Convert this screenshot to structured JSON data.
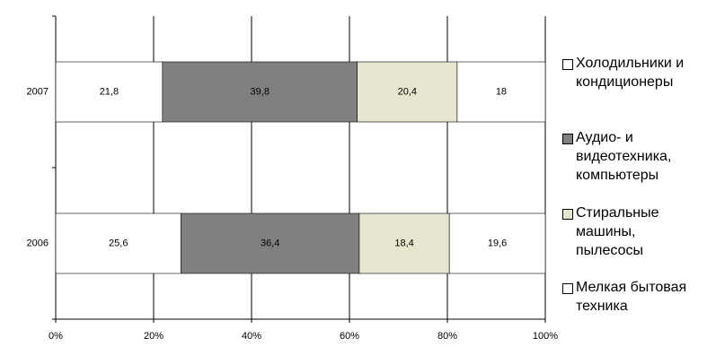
{
  "chart_data": {
    "type": "stacked-bar-horizontal",
    "categories": [
      "2007",
      "2006"
    ],
    "series": [
      {
        "name": "Холодильники и кондиционеры",
        "color": "#ffffff",
        "values": [
          21.8,
          25.6
        ],
        "value_labels": [
          "21,8",
          "25,6"
        ]
      },
      {
        "name": "Аудио- и видеотехника, компьютеры",
        "color": "#808080",
        "values": [
          39.8,
          36.4
        ],
        "value_labels": [
          "39,8",
          "36,4"
        ]
      },
      {
        "name": "Стиральные машины, пылесосы",
        "color": "#e6e6cf",
        "values": [
          20.4,
          18.4
        ],
        "value_labels": [
          "20,4",
          "18,4"
        ]
      },
      {
        "name": "Мелкая бытовая техника",
        "color": "#ffffff",
        "values": [
          18,
          19.6
        ],
        "value_labels": [
          "18",
          "19,6"
        ]
      }
    ],
    "xlim": [
      0,
      100
    ],
    "xticks": [
      {
        "value": 0,
        "label": "0%"
      },
      {
        "value": 20,
        "label": "20%"
      },
      {
        "value": 40,
        "label": "40%"
      },
      {
        "value": 60,
        "label": "60%"
      },
      {
        "value": 80,
        "label": "80%"
      },
      {
        "value": 100,
        "label": "100%"
      }
    ],
    "grid": true
  }
}
